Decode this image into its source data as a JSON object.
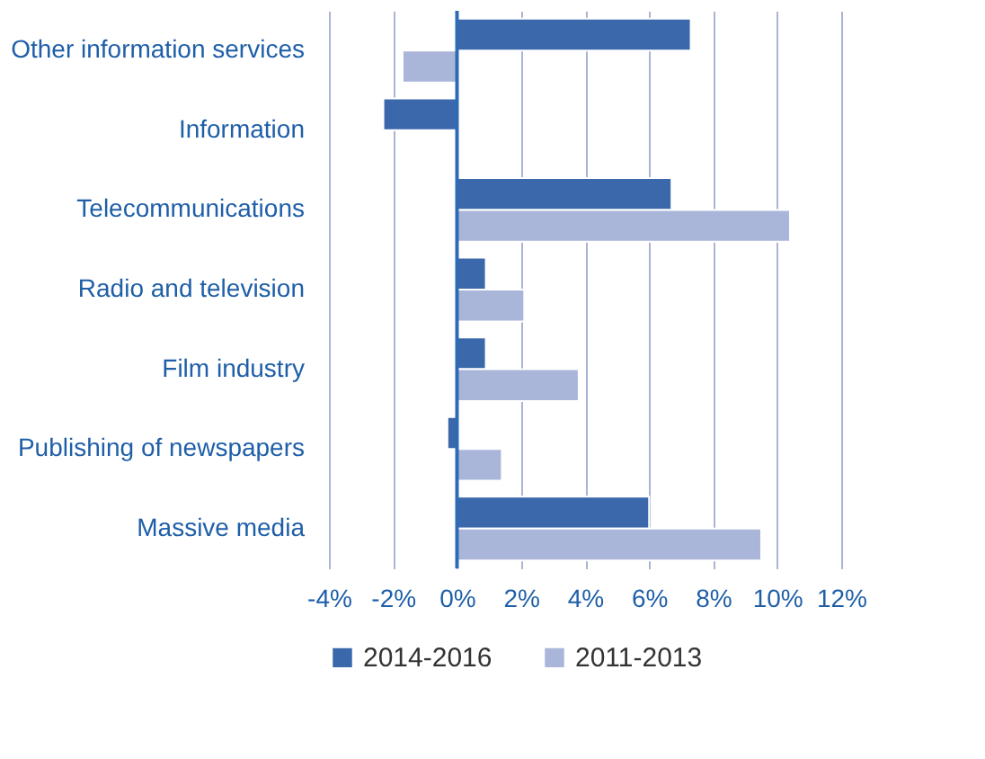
{
  "chart_data": {
    "type": "bar",
    "orientation": "horizontal",
    "categories": [
      "Other information services",
      "Information",
      "Telecommunications",
      "Radio and television",
      "Film industry",
      "Publishing of newspapers",
      "Massive media"
    ],
    "series": [
      {
        "name": "2014-2016",
        "color": "#3a68ab",
        "values": [
          7.3,
          -2.3,
          6.7,
          0.9,
          0.9,
          -0.3,
          6.0
        ]
      },
      {
        "name": "2011-2013",
        "color": "#a9b5d9",
        "values": [
          -1.7,
          null,
          10.4,
          2.1,
          3.8,
          1.4,
          9.5
        ]
      }
    ],
    "ref_lines": [
      {
        "axis": "x",
        "value": 0,
        "color": "#2e6bb5"
      }
    ],
    "xlim": [
      -4,
      12
    ],
    "xticks": [
      {
        "value": -4,
        "label": "-4%"
      },
      {
        "value": -2,
        "label": "-2%"
      },
      {
        "value": 0,
        "label": "0%"
      },
      {
        "value": 2,
        "label": "2%"
      },
      {
        "value": 4,
        "label": "4%"
      },
      {
        "value": 6,
        "label": "6%"
      },
      {
        "value": 8,
        "label": "8%"
      },
      {
        "value": 10,
        "label": "10%"
      },
      {
        "value": 12,
        "label": "12%"
      }
    ],
    "grid": "x",
    "legend": "bottom"
  }
}
